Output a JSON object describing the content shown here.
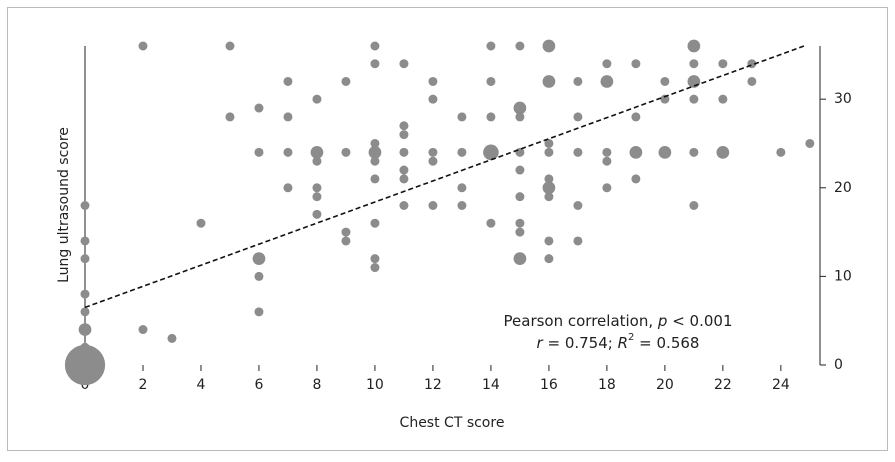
{
  "chart_data": {
    "type": "scatter",
    "x_label": "Chest CT score",
    "y_label": "Lung ultrasound score",
    "annotation": [
      [
        "Pearson correlation, ",
        "p",
        " < 0.001"
      ],
      [
        "r",
        " = 0.754; ",
        "R",
        "2",
        " = 0.568"
      ]
    ],
    "xlim": [
      0,
      25.35
    ],
    "ylim": [
      0,
      36
    ],
    "xticks": [
      0,
      2,
      4,
      6,
      8,
      10,
      12,
      14,
      16,
      18,
      20,
      22,
      24
    ],
    "yticks": [
      0,
      10,
      20,
      30
    ],
    "fit_line": {
      "x": [
        0,
        24.8
      ],
      "y": [
        6.5,
        36
      ]
    },
    "series": [
      {
        "color": "#8c8c8c",
        "x": [
          0,
          0,
          0,
          0,
          0,
          0,
          0,
          0,
          2,
          2,
          3,
          4,
          5,
          5,
          6,
          6,
          6,
          6,
          6,
          7,
          7,
          7,
          7,
          8,
          8,
          8,
          8,
          8,
          8,
          9,
          9,
          9,
          9,
          10,
          10,
          10,
          10,
          10,
          10,
          10,
          10,
          10,
          11,
          11,
          11,
          11,
          11,
          11,
          11,
          12,
          12,
          12,
          12,
          12,
          13,
          13,
          13,
          13,
          14,
          14,
          14,
          14,
          14,
          15,
          15,
          15,
          15,
          15,
          15,
          15,
          15,
          15,
          16,
          16,
          16,
          16,
          16,
          16,
          16,
          16,
          16,
          17,
          17,
          17,
          17,
          17,
          18,
          18,
          18,
          18,
          18,
          19,
          19,
          19,
          19,
          20,
          20,
          20,
          21,
          21,
          21,
          21,
          21,
          21,
          22,
          22,
          22,
          23,
          23,
          24,
          25
        ],
        "y": [
          18,
          14,
          12,
          8,
          6,
          4,
          2,
          0,
          36,
          4,
          3,
          16,
          36,
          28,
          29,
          24,
          12,
          10,
          6,
          32,
          28,
          24,
          20,
          30,
          24,
          23,
          20,
          19,
          17,
          32,
          24,
          15,
          14,
          36,
          34,
          25,
          24,
          23,
          21,
          16,
          12,
          11,
          34,
          27,
          26,
          24,
          22,
          21,
          18,
          32,
          30,
          24,
          23,
          18,
          28,
          24,
          20,
          18,
          36,
          32,
          28,
          24,
          16,
          36,
          29,
          28,
          24,
          22,
          19,
          16,
          15,
          12,
          36,
          32,
          25,
          24,
          21,
          20,
          19,
          14,
          12,
          32,
          28,
          24,
          18,
          14,
          34,
          32,
          24,
          23,
          20,
          34,
          28,
          24,
          21,
          32,
          30,
          24,
          36,
          34,
          32,
          30,
          24,
          18,
          34,
          30,
          24,
          34,
          32,
          24,
          25
        ],
        "sizes": [
          1,
          1,
          1,
          1,
          1,
          2,
          1,
          20,
          1,
          1,
          1,
          1,
          1,
          1,
          1,
          1,
          2,
          1,
          1,
          1,
          1,
          1,
          1,
          1,
          2,
          1,
          1,
          1,
          1,
          1,
          1,
          1,
          1,
          1,
          1,
          1,
          2,
          1,
          1,
          1,
          1,
          1,
          1,
          1,
          1,
          1,
          1,
          1,
          1,
          1,
          1,
          1,
          1,
          1,
          1,
          1,
          1,
          1,
          1,
          1,
          1,
          3,
          1,
          1,
          2,
          1,
          1,
          1,
          1,
          1,
          1,
          2,
          2,
          2,
          1,
          1,
          1,
          2,
          1,
          1,
          1,
          1,
          1,
          1,
          1,
          1,
          1,
          2,
          1,
          1,
          1,
          1,
          1,
          2,
          1,
          1,
          1,
          2,
          2,
          1,
          2,
          1,
          1,
          1,
          1,
          1,
          2,
          1,
          1,
          1,
          1
        ]
      }
    ]
  }
}
